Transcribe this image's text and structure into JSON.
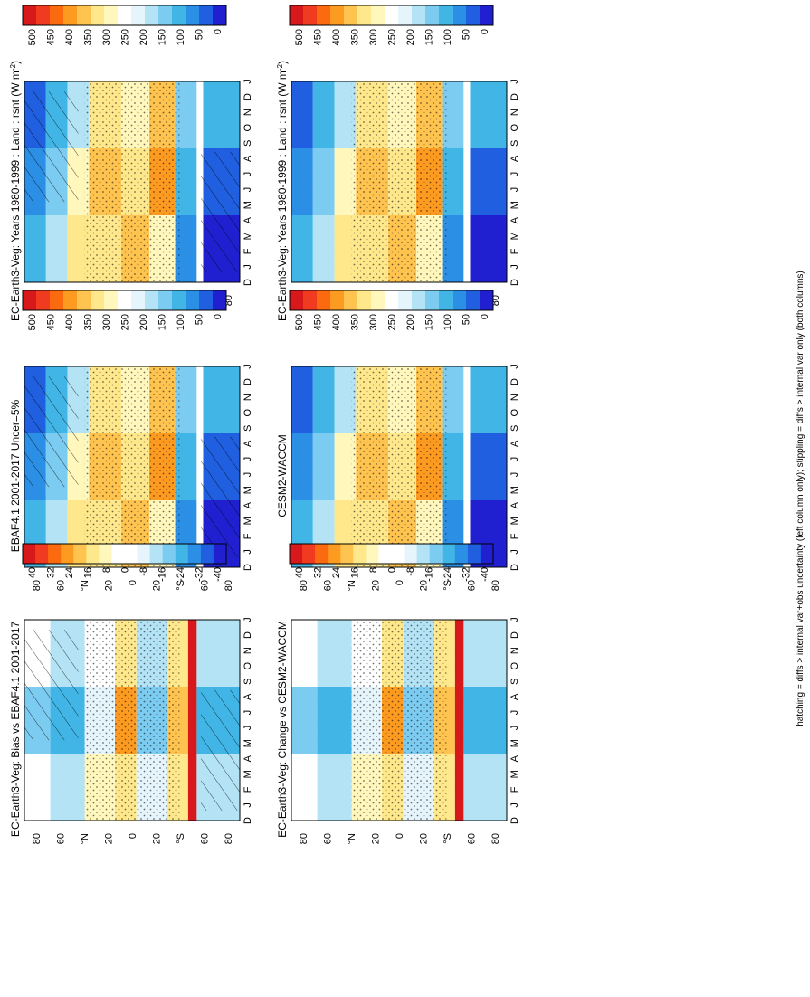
{
  "footnote": "hatching = diffs > internal var+obs uncertainty (left column only); stippling = diffs > internal var only (both columns)",
  "month_labels": [
    "D",
    "J",
    "F",
    "M",
    "A",
    "M",
    "J",
    "J",
    "A",
    "S",
    "O",
    "N",
    "D",
    "J"
  ],
  "lat_labels": [
    "80",
    "60",
    "°N",
    "20",
    "0",
    "20",
    "°S",
    "60",
    "80"
  ],
  "chart_data": [
    {
      "id": "top-left",
      "type": "heatmap",
      "title": "EC-Earth3-Veg: Years 1980-1999 : Land : rsnt (W m",
      "title_sup": "-2",
      "title_end": ")",
      "colorbar": {
        "ticks": [
          "500",
          "450",
          "400",
          "350",
          "300",
          "250",
          "200",
          "150",
          "100",
          "50",
          "0"
        ],
        "colors": [
          "#d7191c",
          "#f03b20",
          "#fb6a0f",
          "#fd9a20",
          "#fec44f",
          "#fee88b",
          "#fff7bc",
          "#ffffff",
          "#e6f5fb",
          "#b3e3f5",
          "#7ccbf0",
          "#41b6e6",
          "#2c8fe6",
          "#1f5fe0",
          "#2020d0"
        ]
      },
      "diagram": "abs",
      "hatched": true
    },
    {
      "id": "top-right",
      "type": "heatmap",
      "title": "EC-Earth3-Veg: Years 1980-1999 : Land : rsnt (W m",
      "title_sup": "-2",
      "title_end": ")",
      "colorbar": {
        "ticks": [
          "500",
          "450",
          "400",
          "350",
          "300",
          "250",
          "200",
          "150",
          "100",
          "50",
          "0"
        ],
        "colors": [
          "#d7191c",
          "#f03b20",
          "#fb6a0f",
          "#fd9a20",
          "#fec44f",
          "#fee88b",
          "#fff7bc",
          "#ffffff",
          "#e6f5fb",
          "#b3e3f5",
          "#7ccbf0",
          "#41b6e6",
          "#2c8fe6",
          "#1f5fe0",
          "#2020d0"
        ]
      },
      "diagram": "abs",
      "hatched": false
    },
    {
      "id": "mid-left",
      "type": "heatmap",
      "title": "EBAF4.1 2001-2017 Uncer=5%",
      "colorbar": {
        "ticks": [
          "500",
          "450",
          "400",
          "350",
          "300",
          "250",
          "200",
          "150",
          "100",
          "50",
          "0"
        ],
        "colors": [
          "#d7191c",
          "#f03b20",
          "#fb6a0f",
          "#fd9a20",
          "#fec44f",
          "#fee88b",
          "#fff7bc",
          "#ffffff",
          "#e6f5fb",
          "#b3e3f5",
          "#7ccbf0",
          "#41b6e6",
          "#2c8fe6",
          "#1f5fe0",
          "#2020d0"
        ]
      },
      "diagram": "abs",
      "hatched": true
    },
    {
      "id": "mid-right",
      "type": "heatmap",
      "title": "CESM2-WACCM",
      "colorbar": {
        "ticks": [
          "500",
          "450",
          "400",
          "350",
          "300",
          "250",
          "200",
          "150",
          "100",
          "50",
          "0"
        ],
        "colors": [
          "#d7191c",
          "#f03b20",
          "#fb6a0f",
          "#fd9a20",
          "#fec44f",
          "#fee88b",
          "#fff7bc",
          "#ffffff",
          "#e6f5fb",
          "#b3e3f5",
          "#7ccbf0",
          "#41b6e6",
          "#2c8fe6",
          "#1f5fe0",
          "#2020d0"
        ]
      },
      "diagram": "abs",
      "hatched": false
    },
    {
      "id": "bot-left",
      "type": "heatmap",
      "title": "EC-Earth3-Veg: Bias vs EBAF4.1 2001-2017",
      "colorbar": {
        "ticks": [
          "40",
          "32",
          "24",
          "16",
          "8",
          "0",
          "-8",
          "-16",
          "-24",
          "-32",
          "-40"
        ],
        "colors": [
          "#d7191c",
          "#f03b20",
          "#fb6a0f",
          "#fd9a20",
          "#fec44f",
          "#fee88b",
          "#fff7bc",
          "#ffffff",
          "#ffffff",
          "#e6f5fb",
          "#b3e3f5",
          "#7ccbf0",
          "#41b6e6",
          "#2c8fe6",
          "#1f5fe0",
          "#2020d0"
        ]
      },
      "diagram": "diff",
      "hatched": true
    },
    {
      "id": "bot-right",
      "type": "heatmap",
      "title": "EC-Earth3-Veg: Change vs CESM2-WACCM",
      "colorbar": {
        "ticks": [
          "40",
          "32",
          "24",
          "16",
          "8",
          "0",
          "-8",
          "-16",
          "-24",
          "-32",
          "-40"
        ],
        "colors": [
          "#d7191c",
          "#f03b20",
          "#fb6a0f",
          "#fd9a20",
          "#fec44f",
          "#fee88b",
          "#fff7bc",
          "#ffffff",
          "#ffffff",
          "#e6f5fb",
          "#b3e3f5",
          "#7ccbf0",
          "#41b6e6",
          "#2c8fe6",
          "#1f5fe0",
          "#2020d0"
        ]
      },
      "diagram": "diff",
      "hatched": false
    }
  ]
}
